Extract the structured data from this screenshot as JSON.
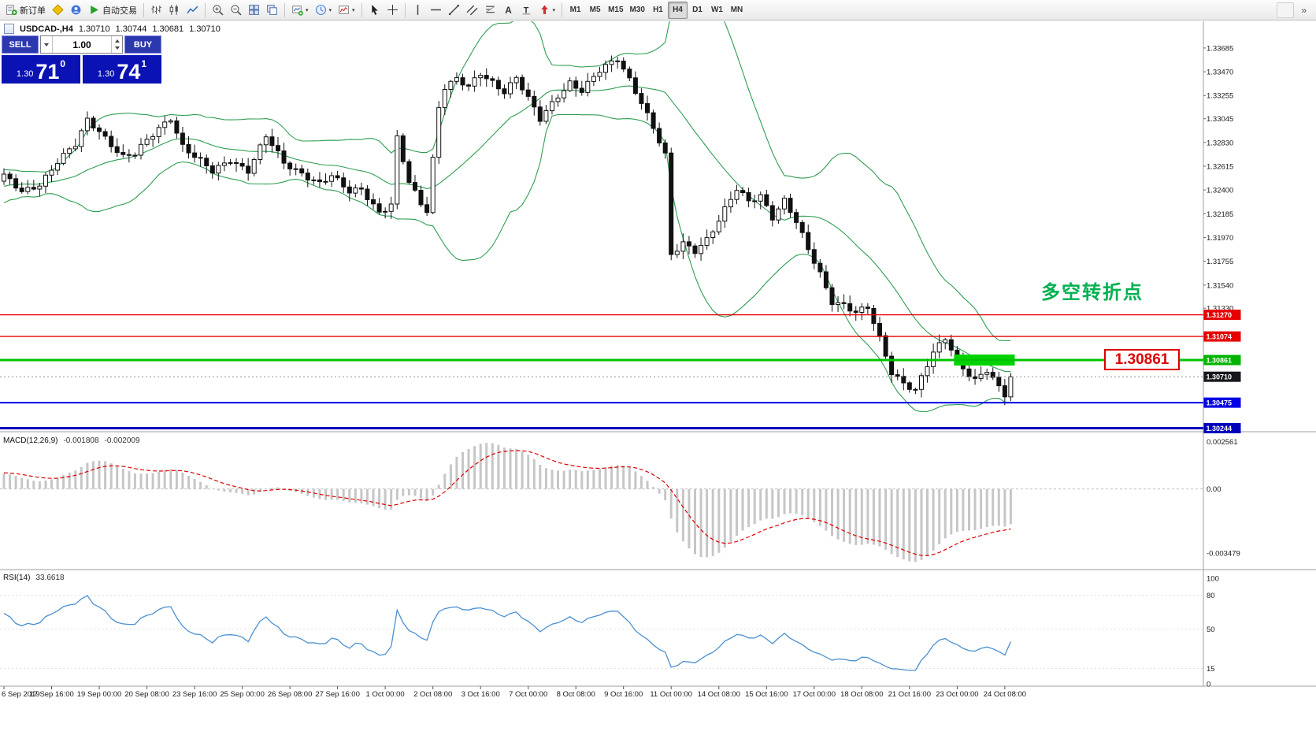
{
  "toolbar": {
    "groups": [
      {
        "name": "standard",
        "items": [
          {
            "name": "new-order",
            "icon": "new-order",
            "label": "新订单"
          },
          {
            "name": "metaeditor",
            "icon": "metaeditor"
          },
          {
            "name": "community",
            "icon": "community"
          },
          {
            "name": "autotrading",
            "icon": "autotrading",
            "label": "自动交易"
          }
        ]
      },
      {
        "name": "chart-types",
        "items": [
          {
            "name": "bar-chart",
            "icon": "chart-bars"
          },
          {
            "name": "candlestick-chart",
            "icon": "chart-candles"
          },
          {
            "name": "line-chart",
            "icon": "chart-line"
          }
        ]
      },
      {
        "name": "zoom",
        "items": [
          {
            "name": "zoom-in",
            "icon": "zoom-in"
          },
          {
            "name": "zoom-out",
            "icon": "zoom-out"
          },
          {
            "name": "tile-windows",
            "icon": "tile"
          },
          {
            "name": "cascade-windows",
            "icon": "cascade"
          }
        ]
      },
      {
        "name": "chart-tools",
        "items": [
          {
            "name": "new-chart",
            "icon": "new-chart",
            "caret": true
          },
          {
            "name": "profiles",
            "icon": "profiles",
            "caret": true
          },
          {
            "name": "indicators",
            "icon": "indicators",
            "caret": true
          }
        ]
      },
      {
        "name": "cursor-tools",
        "items": [
          {
            "name": "cursor",
            "icon": "cursor"
          },
          {
            "name": "crosshair",
            "icon": "crosshair"
          }
        ]
      },
      {
        "name": "line-studies",
        "items": [
          {
            "name": "vertical-line",
            "icon": "vline"
          },
          {
            "name": "horizontal-line",
            "icon": "hline"
          },
          {
            "name": "trendline",
            "icon": "trendline"
          },
          {
            "name": "equidistant-channel",
            "icon": "channel"
          },
          {
            "name": "fibonacci-retracement",
            "icon": "fibonacci"
          },
          {
            "name": "text",
            "icon": "text"
          },
          {
            "name": "text-label",
            "icon": "label"
          },
          {
            "name": "arrows",
            "icon": "arrows",
            "caret": true
          }
        ]
      }
    ],
    "timeframes": {
      "items": [
        "M1",
        "M5",
        "M15",
        "M30",
        "H1",
        "H4",
        "D1",
        "W1",
        "MN"
      ],
      "active": "H4"
    },
    "extras": {
      "overflow_icon": "chevron-double-right"
    }
  },
  "symbol_bar": {
    "symbol": "USDCAD-,H4",
    "open": "1.30710",
    "high": "1.30744",
    "low": "1.30681",
    "close": "1.30710"
  },
  "trade_panel": {
    "sell_label": "SELL",
    "buy_label": "BUY",
    "volume": "1.00",
    "sell_price": {
      "prefix": "1.30",
      "big": "71",
      "sup": "0"
    },
    "buy_price": {
      "prefix": "1.30",
      "big": "74",
      "sup": "1"
    }
  },
  "chart": {
    "annotation": {
      "text": "多空转折点",
      "color": "#00B050"
    },
    "price_label_box": {
      "text": "1.30861"
    },
    "levels": [
      {
        "label": "1.31270",
        "value": 1.3127,
        "color": "#E60000",
        "width": 1.4,
        "tag_bg": "#E60000"
      },
      {
        "label": "1.31074",
        "value": 1.31074,
        "color": "#E60000",
        "width": 1.4,
        "tag_bg": "#E60000"
      },
      {
        "label": "1.30861",
        "value": 1.30861,
        "color": "#00C300",
        "width": 3,
        "tag_bg": "#00B400"
      },
      {
        "label": "1.30710",
        "value": 1.3071,
        "color": "#909090",
        "width": 1,
        "dash": "2,3",
        "tag_bg": "#15171C"
      },
      {
        "label": "1.30475",
        "value": 1.30475,
        "color": "#0000E6",
        "width": 2,
        "tag_bg": "#0000E6"
      },
      {
        "label": "1.30244",
        "value": 1.30244,
        "color": "#0000BB",
        "width": 3,
        "tag_bg": "#0000BB"
      }
    ],
    "highlight": {
      "start_index": 160,
      "end_index": 169,
      "value": 1.30861,
      "half_height": 7,
      "color": "#00D300"
    }
  },
  "price_axis": {
    "ticks": [
      "1.33685",
      "1.33470",
      "1.33255",
      "1.33045",
      "1.32830",
      "1.32615",
      "1.32400",
      "1.32185",
      "1.31970",
      "1.31755",
      "1.31540",
      "1.31330"
    ]
  },
  "time_axis": {
    "labels": [
      "6 Sep 2019",
      "17 Sep 16:00",
      "19 Sep 00:00",
      "20 Sep 08:00",
      "23 Sep 16:00",
      "25 Sep 00:00",
      "26 Sep 08:00",
      "27 Sep 16:00",
      "1 Oct 00:00",
      "2 Oct 08:00",
      "3 Oct 16:00",
      "7 Oct 00:00",
      "8 Oct 08:00",
      "9 Oct 16:00",
      "11 Oct 00:00",
      "14 Oct 08:00",
      "15 Oct 16:00",
      "17 Oct 00:00",
      "18 Oct 08:00",
      "21 Oct 16:00",
      "23 Oct 00:00",
      "24 Oct 08:00"
    ]
  },
  "macd_panel": {
    "name": "MACD(12,26,9)",
    "value": "-0.001808",
    "signal": "-0.002009",
    "axis_ticks": [
      {
        "label": "0.002561",
        "value": 0.002561
      },
      {
        "label": "0.00",
        "value": 0
      },
      {
        "label": "-0.003479",
        "value": -0.003479
      }
    ]
  },
  "rsi_panel": {
    "name": "RSI(14)",
    "value": "33.6618",
    "axis_ticks": [
      {
        "label": "100",
        "value": 100
      },
      {
        "label": "80",
        "value": 80
      },
      {
        "label": "50",
        "value": 50
      },
      {
        "label": "15",
        "value": 15
      },
      {
        "label": "0",
        "value": 0
      }
    ],
    "levels": [
      80,
      50,
      15
    ]
  },
  "chart_data": {
    "type": "candlestick",
    "symbol": "USDCAD",
    "timeframe": "H4",
    "visible_ohlc": {
      "open": 1.3071,
      "high": 1.30744,
      "low": 1.30681,
      "close": 1.3071
    },
    "current_price": 1.3071,
    "candle_count": 170,
    "y_axis": {
      "top_price": 1.33927,
      "bottom_price": 1.30212
    },
    "macd_axis": {
      "max": 0.002561,
      "min": -0.003479
    },
    "rsi_axis": {
      "max": 100,
      "min": 0
    },
    "horizontal_levels": [
      1.3127,
      1.31074,
      1.30861,
      1.30475,
      1.30244
    ],
    "indicators": [
      {
        "name": "Bollinger Bands",
        "period": 20,
        "deviation": 2,
        "color": "#2E9E52"
      },
      {
        "name": "MACD",
        "fast": 12,
        "slow": 26,
        "signal": 9,
        "value": -0.001808,
        "signal_value": -0.002009
      },
      {
        "name": "RSI",
        "period": 14,
        "value": 33.6618
      }
    ],
    "warmup_closes": [
      1.3205,
      1.3212,
      1.322,
      1.3216,
      1.3224,
      1.323,
      1.3222,
      1.3228,
      1.3236,
      1.323,
      1.324,
      1.3246,
      1.3238,
      1.3232,
      1.324,
      1.3248,
      1.3244,
      1.3252,
      1.3246,
      1.324,
      1.3248,
      1.3254,
      1.325,
      1.3244,
      1.325,
      1.3248
    ],
    "close_anchors": [
      [
        0,
        1.3252
      ],
      [
        3,
        1.3238
      ],
      [
        6,
        1.3246
      ],
      [
        9,
        1.3266
      ],
      [
        12,
        1.328
      ],
      [
        14,
        1.3303
      ],
      [
        16,
        1.3294
      ],
      [
        18,
        1.3282
      ],
      [
        20,
        1.327
      ],
      [
        22,
        1.3272
      ],
      [
        24,
        1.3284
      ],
      [
        26,
        1.3296
      ],
      [
        28,
        1.3306
      ],
      [
        30,
        1.328
      ],
      [
        32,
        1.327
      ],
      [
        35,
        1.3256
      ],
      [
        38,
        1.3268
      ],
      [
        41,
        1.3258
      ],
      [
        44,
        1.3288
      ],
      [
        47,
        1.3264
      ],
      [
        50,
        1.3256
      ],
      [
        53,
        1.3246
      ],
      [
        55,
        1.3252
      ],
      [
        58,
        1.3238
      ],
      [
        60,
        1.3242
      ],
      [
        63,
        1.322
      ],
      [
        65,
        1.3226
      ],
      [
        66,
        1.3286
      ],
      [
        68,
        1.3246
      ],
      [
        70,
        1.3228
      ],
      [
        71,
        1.3222
      ],
      [
        73,
        1.3316
      ],
      [
        74,
        1.3334
      ],
      [
        76,
        1.334
      ],
      [
        78,
        1.3332
      ],
      [
        80,
        1.3345
      ],
      [
        82,
        1.3338
      ],
      [
        84,
        1.333
      ],
      [
        86,
        1.3342
      ],
      [
        88,
        1.3322
      ],
      [
        90,
        1.3303
      ],
      [
        93,
        1.3326
      ],
      [
        95,
        1.3338
      ],
      [
        97,
        1.333
      ],
      [
        100,
        1.3347
      ],
      [
        103,
        1.3359
      ],
      [
        105,
        1.3341
      ],
      [
        107,
        1.332
      ],
      [
        109,
        1.3296
      ],
      [
        111,
        1.327
      ],
      [
        112,
        1.318
      ],
      [
        114,
        1.3192
      ],
      [
        116,
        1.3186
      ],
      [
        118,
        1.3196
      ],
      [
        120,
        1.3212
      ],
      [
        123,
        1.324
      ],
      [
        125,
        1.323
      ],
      [
        127,
        1.3236
      ],
      [
        129,
        1.3216
      ],
      [
        131,
        1.323
      ],
      [
        133,
        1.321
      ],
      [
        135,
        1.3186
      ],
      [
        137,
        1.3165
      ],
      [
        139,
        1.314
      ],
      [
        141,
        1.3136
      ],
      [
        143,
        1.3128
      ],
      [
        145,
        1.3133
      ],
      [
        147,
        1.3106
      ],
      [
        149,
        1.3076
      ],
      [
        151,
        1.3066
      ],
      [
        153,
        1.3058
      ],
      [
        156,
        1.3092
      ],
      [
        158,
        1.3106
      ],
      [
        160,
        1.3088
      ],
      [
        161,
        1.308
      ],
      [
        163,
        1.3068
      ],
      [
        165,
        1.3076
      ],
      [
        167,
        1.306
      ],
      [
        168,
        1.3054
      ],
      [
        169,
        1.3071
      ]
    ]
  }
}
